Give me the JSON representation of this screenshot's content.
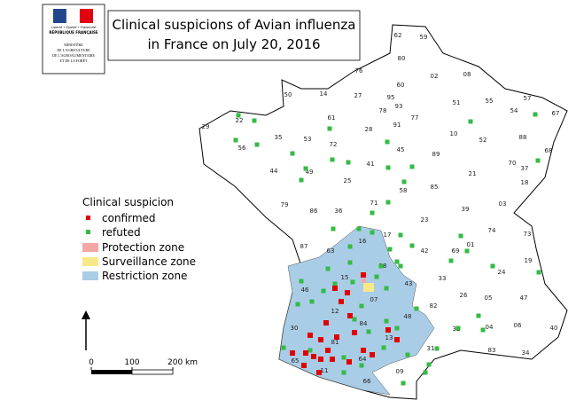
{
  "header": {
    "title_lines": [
      "Clinical suspicions of Avian influenza",
      "in France on July 20, 2016"
    ],
    "logo": {
      "motto": "Liberté • Égalité • Fraternité",
      "republic": "RÉPUBLIQUE FRANÇAISE",
      "ministry_lines": [
        "MINISTÈRE",
        "DE L'AGRICULTURE",
        "DE L'AGROALIMENTAIRE",
        "ET DE LA FORÊT"
      ]
    }
  },
  "legend": {
    "title": "Clinical suspicion",
    "items": [
      "confirmed",
      "refuted",
      "Protection zone",
      "Surveillance zone",
      "Restriction zone"
    ]
  },
  "scale_bar": {
    "ticks": [
      0,
      100,
      {
        "value": 200,
        "label": "200 km"
      }
    ]
  },
  "departments": [
    "62",
    "59",
    "80",
    "76",
    "02",
    "08",
    "60",
    "50",
    "14",
    "27",
    "95",
    "51",
    "55",
    "57",
    "67",
    "54",
    "78",
    "93",
    "77",
    "22",
    "29",
    "61",
    "28",
    "91",
    "10",
    "52",
    "88",
    "35",
    "53",
    "72",
    "56",
    "45",
    "89",
    "68",
    "70",
    "41",
    "44",
    "49",
    "21",
    "37",
    "25",
    "18",
    "58",
    "85",
    "79",
    "86",
    "36",
    "71",
    "39",
    "03",
    "23",
    "17",
    "87",
    "16",
    "63",
    "42",
    "69",
    "01",
    "74",
    "73",
    "19",
    "38",
    "24",
    "15",
    "43",
    "33",
    "46",
    "07",
    "26",
    "05",
    "47",
    "12",
    "48",
    "82",
    "84",
    "04",
    "06",
    "40",
    "30",
    "32",
    "81",
    "13",
    "83",
    "34",
    "31",
    "64",
    "65",
    "11",
    "09",
    "66"
  ]
}
